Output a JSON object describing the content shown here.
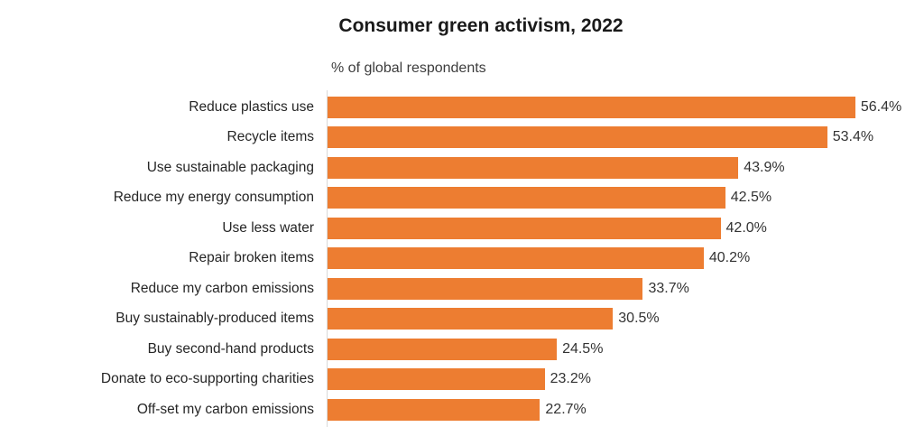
{
  "title": "Consumer green activism, 2022",
  "subtitle": "% of global respondents",
  "chart_data": {
    "type": "bar",
    "orientation": "horizontal",
    "title": "Consumer green activism, 2022",
    "subtitle": "% of global respondents",
    "categories": [
      "Reduce plastics use",
      "Recycle items",
      "Use sustainable packaging",
      "Reduce my energy consumption",
      "Use less water",
      "Repair broken items",
      "Reduce my carbon emissions",
      "Buy sustainably-produced items",
      "Buy second-hand products",
      "Donate to eco-supporting charities",
      "Off-set my carbon emissions"
    ],
    "values": [
      56.4,
      53.4,
      43.9,
      42.5,
      42.0,
      40.2,
      33.7,
      30.5,
      24.5,
      23.2,
      22.7
    ],
    "value_labels": [
      "56.4%",
      "53.4%",
      "43.9%",
      "42.5%",
      "42.0%",
      "40.2%",
      "33.7%",
      "30.5%",
      "24.5%",
      "23.2%",
      "22.7%"
    ],
    "value_suffix": "%",
    "bar_color": "#ED7D31",
    "axis_line_color": "#D9D9D9",
    "label_color": "#262626",
    "grid": false,
    "legend": false,
    "data_labels": "outside-end"
  }
}
